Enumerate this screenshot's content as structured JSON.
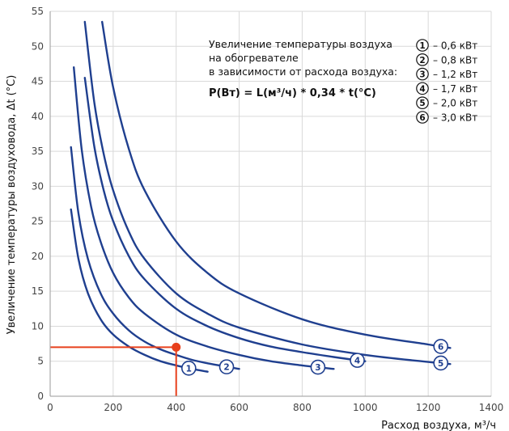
{
  "chart_data": {
    "type": "line",
    "xlabel": "Расход воздуха, м³/ч",
    "ylabel": "Увеличение температуры воздуховода, Δt (°C)",
    "xlim": [
      0,
      1400
    ],
    "ylim": [
      0,
      55
    ],
    "x_ticks": [
      "0",
      "200",
      "400",
      "600",
      "800",
      "1000",
      "1200",
      "1400"
    ],
    "y_ticks": [
      "0",
      "5",
      "10",
      "15",
      "20",
      "25",
      "30",
      "35",
      "40",
      "45",
      "50",
      "55"
    ],
    "grid": "vertical+horizontal",
    "line_color": "#1f3f8f",
    "accent_color": "#e8401c",
    "annotation": {
      "lines": [
        "Увеличение температуры воздуха",
        "на обогревателе",
        "в зависимости от расхода воздуха:"
      ],
      "formula": "P(Вт) = L(м³/ч) * 0,34 * t(°C)"
    },
    "legend": [
      {
        "num": "1",
        "label": "– 0,6 кВт"
      },
      {
        "num": "2",
        "label": "– 0,8 кВт"
      },
      {
        "num": "3",
        "label": "– 1,2 кВт"
      },
      {
        "num": "4",
        "label": "– 1,7 кВт"
      },
      {
        "num": "5",
        "label": "– 2,0 кВт"
      },
      {
        "num": "6",
        "label": "– 3,0 кВт"
      }
    ],
    "series": [
      {
        "label": "1",
        "power_w": 600,
        "x": [
          66,
          90,
          120,
          160,
          200,
          250,
          300,
          350,
          400,
          450,
          500
        ],
        "y": [
          26.7,
          19.6,
          14.7,
          11.0,
          8.8,
          7.1,
          5.9,
          5.0,
          4.4,
          3.9,
          3.5
        ]
      },
      {
        "label": "2",
        "power_w": 800,
        "x": [
          66,
          90,
          120,
          160,
          200,
          250,
          300,
          350,
          400,
          450,
          500,
          550,
          600
        ],
        "y": [
          35.6,
          26.1,
          19.6,
          14.7,
          11.8,
          9.4,
          7.8,
          6.7,
          5.9,
          5.2,
          4.7,
          4.3,
          3.9
        ]
      },
      {
        "label": "3",
        "power_w": 1200,
        "x": [
          75,
          100,
          130,
          160,
          200,
          250,
          300,
          400,
          500,
          600,
          700,
          800,
          900
        ],
        "y": [
          47.0,
          35.3,
          27.1,
          22.1,
          17.6,
          14.1,
          11.8,
          8.8,
          7.1,
          5.9,
          5.0,
          4.4,
          3.9
        ]
      },
      {
        "label": "4",
        "power_w": 1700,
        "x": [
          110,
          140,
          170,
          200,
          250,
          300,
          400,
          500,
          600,
          700,
          800,
          900,
          1000
        ],
        "y": [
          45.5,
          35.7,
          29.4,
          25.0,
          20.0,
          16.7,
          12.5,
          10.0,
          8.3,
          7.1,
          6.3,
          5.6,
          5.0
        ]
      },
      {
        "label": "5",
        "power_w": 2000,
        "x": [
          110,
          140,
          170,
          200,
          250,
          300,
          400,
          500,
          600,
          800,
          1000,
          1200,
          1270
        ],
        "y": [
          53.5,
          42.0,
          34.6,
          29.4,
          23.5,
          19.6,
          14.7,
          11.8,
          9.8,
          7.4,
          5.9,
          4.9,
          4.6
        ]
      },
      {
        "label": "6",
        "power_w": 3000,
        "x": [
          165,
          200,
          250,
          300,
          400,
          500,
          600,
          800,
          1000,
          1200,
          1270
        ],
        "y": [
          53.5,
          44.1,
          35.3,
          29.4,
          22.1,
          17.6,
          14.7,
          11.0,
          8.8,
          7.4,
          6.9
        ]
      }
    ],
    "example_point": {
      "x": 400,
      "y": 7
    }
  }
}
